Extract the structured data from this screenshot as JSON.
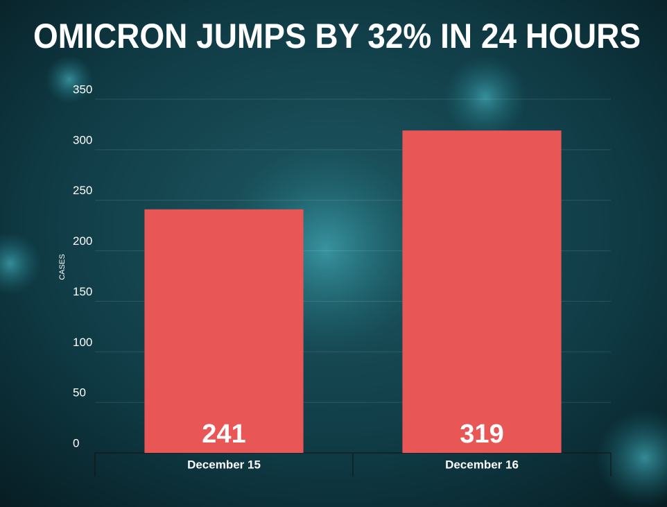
{
  "chart_data": {
    "type": "bar",
    "title": "OMICRON JUMPS BY 32% IN 24 HOURS",
    "y_label": "CASES",
    "categories": [
      "December 15",
      "December 16"
    ],
    "values": [
      241,
      319
    ],
    "color": "#e85656",
    "ylim": [
      0,
      350
    ],
    "yticks": [
      0,
      50,
      100,
      150,
      200,
      250,
      300,
      350
    ],
    "grid": true
  }
}
